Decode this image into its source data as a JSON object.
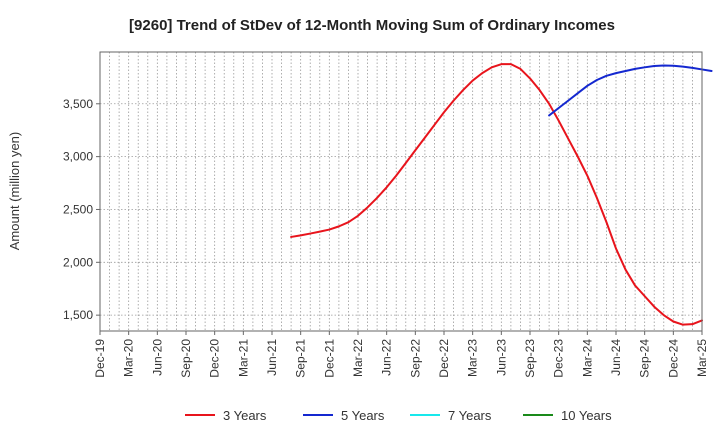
{
  "chart_data": {
    "type": "line",
    "title": "[9260]  Trend of StDev of 12-Month Moving Sum of Ordinary Incomes",
    "xlabel": "",
    "ylabel": "Amount (million yen)",
    "ylim": [
      1350,
      3990
    ],
    "yticks": [
      1500,
      2000,
      2500,
      3000,
      3500
    ],
    "ytick_labels": [
      "1,500",
      "2,000",
      "2,500",
      "3,000",
      "3,500"
    ],
    "xlim": [
      "2019-12",
      "2025-03"
    ],
    "xtick_labels": [
      "Dec-19",
      "Mar-20",
      "Jun-20",
      "Sep-20",
      "Dec-20",
      "Mar-21",
      "Jun-21",
      "Sep-21",
      "Dec-21",
      "Mar-22",
      "Jun-22",
      "Sep-22",
      "Dec-22",
      "Mar-23",
      "Jun-23",
      "Sep-23",
      "Dec-23",
      "Mar-24",
      "Jun-24",
      "Sep-24",
      "Dec-24",
      "Mar-25"
    ],
    "grid": true,
    "legend_position": "bottom",
    "series": [
      {
        "name": "3 Years",
        "color": "#e8141c",
        "points": [
          [
            "2021-08",
            2240
          ],
          [
            "2021-09",
            2255
          ],
          [
            "2021-10",
            2272
          ],
          [
            "2021-11",
            2290
          ],
          [
            "2021-12",
            2310
          ],
          [
            "2022-01",
            2340
          ],
          [
            "2022-02",
            2380
          ],
          [
            "2022-03",
            2440
          ],
          [
            "2022-04",
            2520
          ],
          [
            "2022-05",
            2610
          ],
          [
            "2022-06",
            2710
          ],
          [
            "2022-07",
            2820
          ],
          [
            "2022-08",
            2940
          ],
          [
            "2022-09",
            3060
          ],
          [
            "2022-10",
            3180
          ],
          [
            "2022-11",
            3300
          ],
          [
            "2022-12",
            3420
          ],
          [
            "2023-01",
            3530
          ],
          [
            "2023-02",
            3630
          ],
          [
            "2023-03",
            3720
          ],
          [
            "2023-04",
            3790
          ],
          [
            "2023-05",
            3845
          ],
          [
            "2023-06",
            3875
          ],
          [
            "2023-07",
            3875
          ],
          [
            "2023-08",
            3830
          ],
          [
            "2023-09",
            3740
          ],
          [
            "2023-10",
            3630
          ],
          [
            "2023-11",
            3500
          ],
          [
            "2023-12",
            3340
          ],
          [
            "2024-01",
            3170
          ],
          [
            "2024-02",
            3000
          ],
          [
            "2024-03",
            2820
          ],
          [
            "2024-04",
            2610
          ],
          [
            "2024-05",
            2380
          ],
          [
            "2024-06",
            2130
          ],
          [
            "2024-07",
            1930
          ],
          [
            "2024-08",
            1780
          ],
          [
            "2024-09",
            1680
          ],
          [
            "2024-10",
            1580
          ],
          [
            "2024-11",
            1500
          ],
          [
            "2024-12",
            1440
          ],
          [
            "2025-01",
            1410
          ],
          [
            "2025-02",
            1415
          ],
          [
            "2025-03",
            1450
          ]
        ]
      },
      {
        "name": "5 Years",
        "color": "#1428d0",
        "points": [
          [
            "2023-11",
            3390
          ],
          [
            "2023-12",
            3460
          ],
          [
            "2024-01",
            3530
          ],
          [
            "2024-02",
            3600
          ],
          [
            "2024-03",
            3670
          ],
          [
            "2024-04",
            3725
          ],
          [
            "2024-05",
            3765
          ],
          [
            "2024-06",
            3790
          ],
          [
            "2024-07",
            3810
          ],
          [
            "2024-08",
            3830
          ],
          [
            "2024-09",
            3845
          ],
          [
            "2024-10",
            3858
          ],
          [
            "2024-11",
            3862
          ],
          [
            "2024-12",
            3860
          ],
          [
            "2025-01",
            3852
          ],
          [
            "2025-02",
            3840
          ],
          [
            "2025-03",
            3825
          ],
          [
            "2025-04",
            3810
          ]
        ]
      },
      {
        "name": "7 Years",
        "color": "#18e8ec",
        "points": []
      },
      {
        "name": "10 Years",
        "color": "#1a8a1a",
        "points": []
      }
    ]
  }
}
